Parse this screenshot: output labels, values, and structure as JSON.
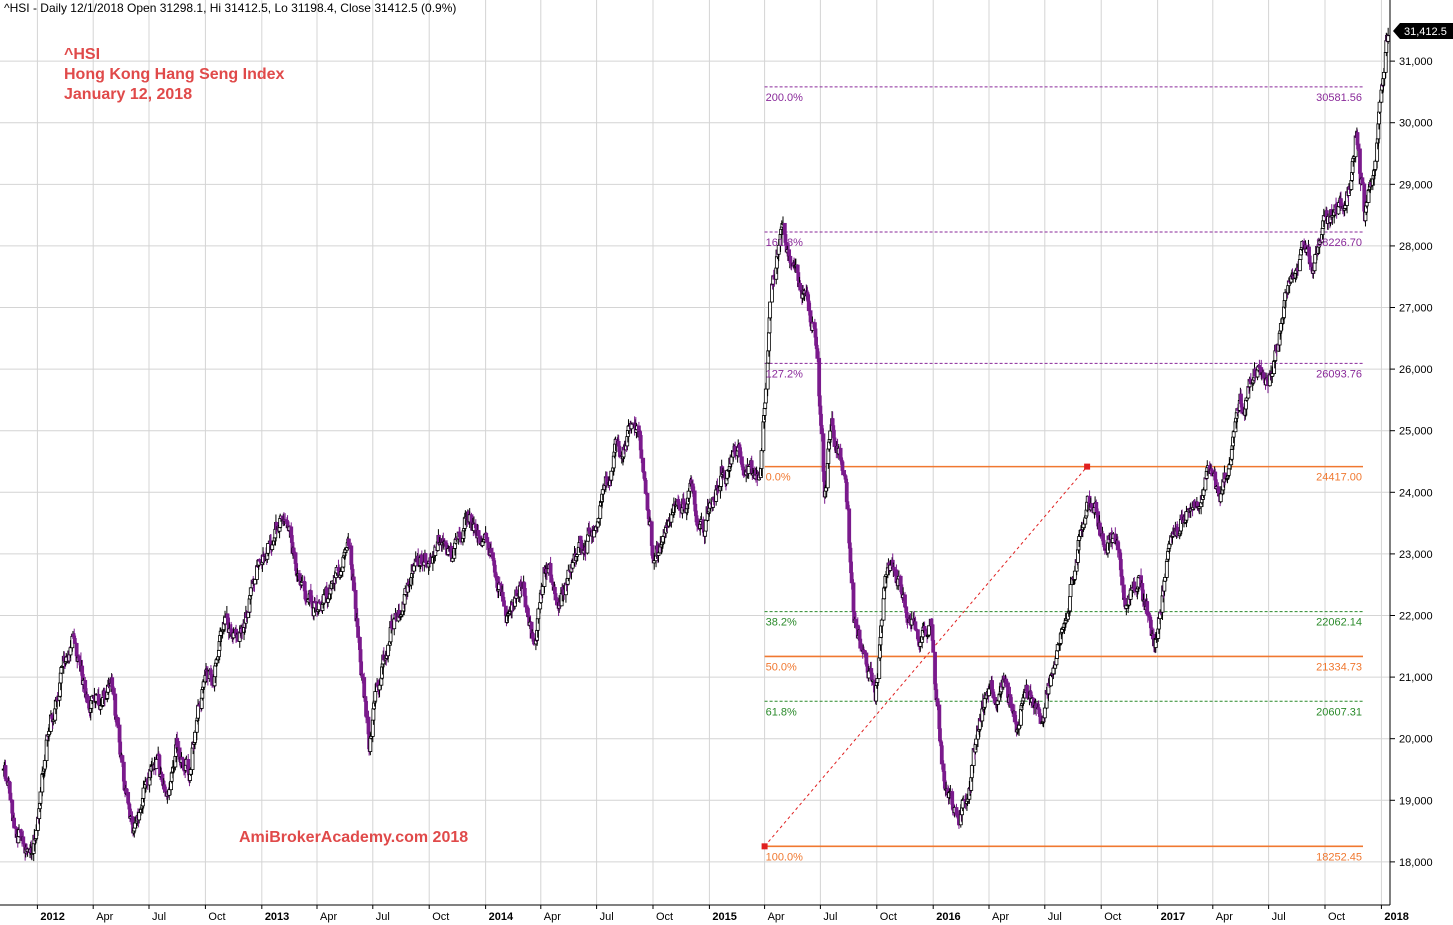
{
  "header": {
    "text": "^HSI - Daily 12/1/2018 Open 31298.1, Hi 31412.5, Lo 31198.4, Close 31412.5 (0.9%)"
  },
  "title_block": {
    "symbol": "^HSI",
    "name": "Hong Kong Hang Seng Index",
    "date": "January 12, 2018",
    "color": "#e04a4a"
  },
  "watermark": "AmiBrokerAcademy.com  2018",
  "last_price_label": "31,412.5",
  "colors": {
    "up_candle": "#000000",
    "down_candle": "#7a1a8c",
    "fib_purple": "#8a2a9a",
    "fib_orange": "#f07830",
    "fib_green": "#2a8a2a",
    "grid": "#d4d4d4",
    "anchor_red": "#e02020"
  },
  "chart_data": {
    "type": "candlestick",
    "series_name": "^HSI",
    "ylim": [
      17300,
      31700
    ],
    "yticks": [
      18000,
      19000,
      20000,
      21000,
      22000,
      23000,
      24000,
      25000,
      26000,
      27000,
      28000,
      29000,
      30000,
      31000
    ],
    "ytick_labels": [
      "18,000",
      "19,000",
      "20,000",
      "21,000",
      "22,000",
      "23,000",
      "24,000",
      "25,000",
      "26,000",
      "27,000",
      "28,000",
      "29,000",
      "30,000",
      "31,000"
    ],
    "x_range": [
      "2011-11-01",
      "2018-01-15"
    ],
    "x_ticks": [
      {
        "date": "2012-01-01",
        "label": "2012",
        "year": true
      },
      {
        "date": "2012-04-01",
        "label": "Apr"
      },
      {
        "date": "2012-07-01",
        "label": "Jul"
      },
      {
        "date": "2012-10-01",
        "label": "Oct"
      },
      {
        "date": "2013-01-01",
        "label": "2013",
        "year": true
      },
      {
        "date": "2013-04-01",
        "label": "Apr"
      },
      {
        "date": "2013-07-01",
        "label": "Jul"
      },
      {
        "date": "2013-10-01",
        "label": "Oct"
      },
      {
        "date": "2014-01-01",
        "label": "2014",
        "year": true
      },
      {
        "date": "2014-04-01",
        "label": "Apr"
      },
      {
        "date": "2014-07-01",
        "label": "Jul"
      },
      {
        "date": "2014-10-01",
        "label": "Oct"
      },
      {
        "date": "2015-01-01",
        "label": "2015",
        "year": true
      },
      {
        "date": "2015-04-01",
        "label": "Apr"
      },
      {
        "date": "2015-07-01",
        "label": "Jul"
      },
      {
        "date": "2015-10-01",
        "label": "Oct"
      },
      {
        "date": "2016-01-01",
        "label": "2016",
        "year": true
      },
      {
        "date": "2016-04-01",
        "label": "Apr"
      },
      {
        "date": "2016-07-01",
        "label": "Jul"
      },
      {
        "date": "2016-10-01",
        "label": "Oct"
      },
      {
        "date": "2017-01-01",
        "label": "2017",
        "year": true
      },
      {
        "date": "2017-04-01",
        "label": "Apr"
      },
      {
        "date": "2017-07-01",
        "label": "Jul"
      },
      {
        "date": "2017-10-01",
        "label": "Oct"
      },
      {
        "date": "2018-01-01",
        "label": "2018",
        "year": true
      }
    ],
    "price_path": [
      [
        "2011-11-01",
        19700
      ],
      [
        "2011-11-20",
        18900
      ],
      [
        "2011-12-10",
        18200
      ],
      [
        "2011-12-30",
        18400
      ],
      [
        "2012-01-20",
        20200
      ],
      [
        "2012-02-10",
        21200
      ],
      [
        "2012-02-29",
        21600
      ],
      [
        "2012-03-20",
        20800
      ],
      [
        "2012-04-10",
        20500
      ],
      [
        "2012-05-01",
        21000
      ],
      [
        "2012-05-20",
        19500
      ],
      [
        "2012-06-05",
        18500
      ],
      [
        "2012-06-25",
        19200
      ],
      [
        "2012-07-15",
        19600
      ],
      [
        "2012-07-30",
        19000
      ],
      [
        "2012-08-15",
        20000
      ],
      [
        "2012-09-05",
        19400
      ],
      [
        "2012-09-20",
        20600
      ],
      [
        "2012-10-15",
        21000
      ],
      [
        "2012-11-05",
        21900
      ],
      [
        "2012-11-25",
        21600
      ],
      [
        "2012-12-15",
        22500
      ],
      [
        "2013-01-10",
        23200
      ],
      [
        "2013-02-01",
        23500
      ],
      [
        "2013-02-20",
        23000
      ],
      [
        "2013-03-10",
        22300
      ],
      [
        "2013-04-01",
        22000
      ],
      [
        "2013-04-20",
        22400
      ],
      [
        "2013-05-10",
        22800
      ],
      [
        "2013-05-25",
        23100
      ],
      [
        "2013-06-10",
        21500
      ],
      [
        "2013-06-25",
        19800
      ],
      [
        "2013-07-10",
        20900
      ],
      [
        "2013-07-30",
        21900
      ],
      [
        "2013-08-15",
        22100
      ],
      [
        "2013-09-05",
        22700
      ],
      [
        "2013-09-30",
        23000
      ],
      [
        "2013-10-20",
        23200
      ],
      [
        "2013-11-10",
        23000
      ],
      [
        "2013-12-01",
        23700
      ],
      [
        "2013-12-20",
        23300
      ],
      [
        "2014-01-15",
        23000
      ],
      [
        "2014-02-05",
        22000
      ],
      [
        "2014-03-01",
        22700
      ],
      [
        "2014-03-20",
        21500
      ],
      [
        "2014-04-10",
        22800
      ],
      [
        "2014-05-01",
        22300
      ],
      [
        "2014-05-25",
        22900
      ],
      [
        "2014-06-15",
        23200
      ],
      [
        "2014-07-10",
        23800
      ],
      [
        "2014-08-01",
        24700
      ],
      [
        "2014-08-25",
        25100
      ],
      [
        "2014-09-10",
        24800
      ],
      [
        "2014-10-01",
        23000
      ],
      [
        "2014-10-20",
        23300
      ],
      [
        "2014-11-10",
        23800
      ],
      [
        "2014-12-01",
        24000
      ],
      [
        "2014-12-20",
        23300
      ],
      [
        "2015-01-15",
        24300
      ],
      [
        "2015-02-10",
        24600
      ],
      [
        "2015-03-05",
        24300
      ],
      [
        "2015-03-25",
        24400
      ],
      [
        "2015-04-10",
        27000
      ],
      [
        "2015-04-28",
        28200
      ],
      [
        "2015-05-20",
        27600
      ],
      [
        "2015-06-10",
        27100
      ],
      [
        "2015-06-25",
        26600
      ],
      [
        "2015-07-08",
        24000
      ],
      [
        "2015-07-20",
        25200
      ],
      [
        "2015-08-10",
        24200
      ],
      [
        "2015-08-25",
        22000
      ],
      [
        "2015-09-10",
        21400
      ],
      [
        "2015-09-29",
        20800
      ],
      [
        "2015-10-15",
        22600
      ],
      [
        "2015-10-30",
        22800
      ],
      [
        "2015-11-20",
        22200
      ],
      [
        "2015-12-10",
        21800
      ],
      [
        "2015-12-30",
        21900
      ],
      [
        "2016-01-15",
        19600
      ],
      [
        "2016-01-29",
        19000
      ],
      [
        "2016-02-12",
        18500
      ],
      [
        "2016-03-01",
        19300
      ],
      [
        "2016-03-20",
        20500
      ],
      [
        "2016-04-10",
        20800
      ],
      [
        "2016-04-28",
        21100
      ],
      [
        "2016-05-15",
        20000
      ],
      [
        "2016-06-01",
        20800
      ],
      [
        "2016-06-25",
        20200
      ],
      [
        "2016-07-10",
        21100
      ],
      [
        "2016-07-30",
        21900
      ],
      [
        "2016-08-20",
        22900
      ],
      [
        "2016-09-09",
        24000
      ],
      [
        "2016-09-30",
        23300
      ],
      [
        "2016-10-20",
        23200
      ],
      [
        "2016-11-10",
        22300
      ],
      [
        "2016-12-01",
        22600
      ],
      [
        "2016-12-28",
        21700
      ],
      [
        "2017-01-15",
        22700
      ],
      [
        "2017-02-10",
        23600
      ],
      [
        "2017-03-05",
        23700
      ],
      [
        "2017-03-25",
        24300
      ],
      [
        "2017-04-15",
        24000
      ],
      [
        "2017-05-05",
        24800
      ],
      [
        "2017-05-25",
        25600
      ],
      [
        "2017-06-10",
        25900
      ],
      [
        "2017-06-28",
        25800
      ],
      [
        "2017-07-15",
        26400
      ],
      [
        "2017-07-30",
        27200
      ],
      [
        "2017-08-15",
        27600
      ],
      [
        "2017-08-30",
        27900
      ],
      [
        "2017-09-15",
        27800
      ],
      [
        "2017-10-05",
        28400
      ],
      [
        "2017-10-25",
        28500
      ],
      [
        "2017-11-10",
        29000
      ],
      [
        "2017-11-22",
        30000
      ],
      [
        "2017-12-05",
        28600
      ],
      [
        "2017-12-20",
        29300
      ],
      [
        "2018-01-02",
        30500
      ],
      [
        "2018-01-12",
        31412.5
      ]
    ],
    "fibonacci": {
      "swing": {
        "start": {
          "date": "2015-04-01",
          "price": 18252.45
        },
        "end": {
          "date": "2016-09-08",
          "price": 24417.0
        }
      },
      "levels": [
        {
          "label": "200.0%",
          "value": "30581.56",
          "price": 30581.56,
          "color": "#8a2a9a",
          "style": "dashed"
        },
        {
          "label": "161.8%",
          "value": "28226.70",
          "price": 28226.7,
          "color": "#8a2a9a",
          "style": "dashed"
        },
        {
          "label": "127.2%",
          "value": "26093.76",
          "price": 26093.76,
          "color": "#8a2a9a",
          "style": "dashed"
        },
        {
          "label": "0.0%",
          "value": "24417.00",
          "price": 24417.0,
          "color": "#f07830",
          "style": "solid"
        },
        {
          "label": "38.2%",
          "value": "22062.14",
          "price": 22062.14,
          "color": "#2a8a2a",
          "style": "dashed"
        },
        {
          "label": "50.0%",
          "value": "21334.73",
          "price": 21334.73,
          "color": "#f07830",
          "style": "solid"
        },
        {
          "label": "61.8%",
          "value": "20607.31",
          "price": 20607.31,
          "color": "#2a8a2a",
          "style": "dashed"
        },
        {
          "label": "100.0%",
          "value": "18252.45",
          "price": 18252.45,
          "color": "#f07830",
          "style": "solid"
        }
      ]
    }
  }
}
